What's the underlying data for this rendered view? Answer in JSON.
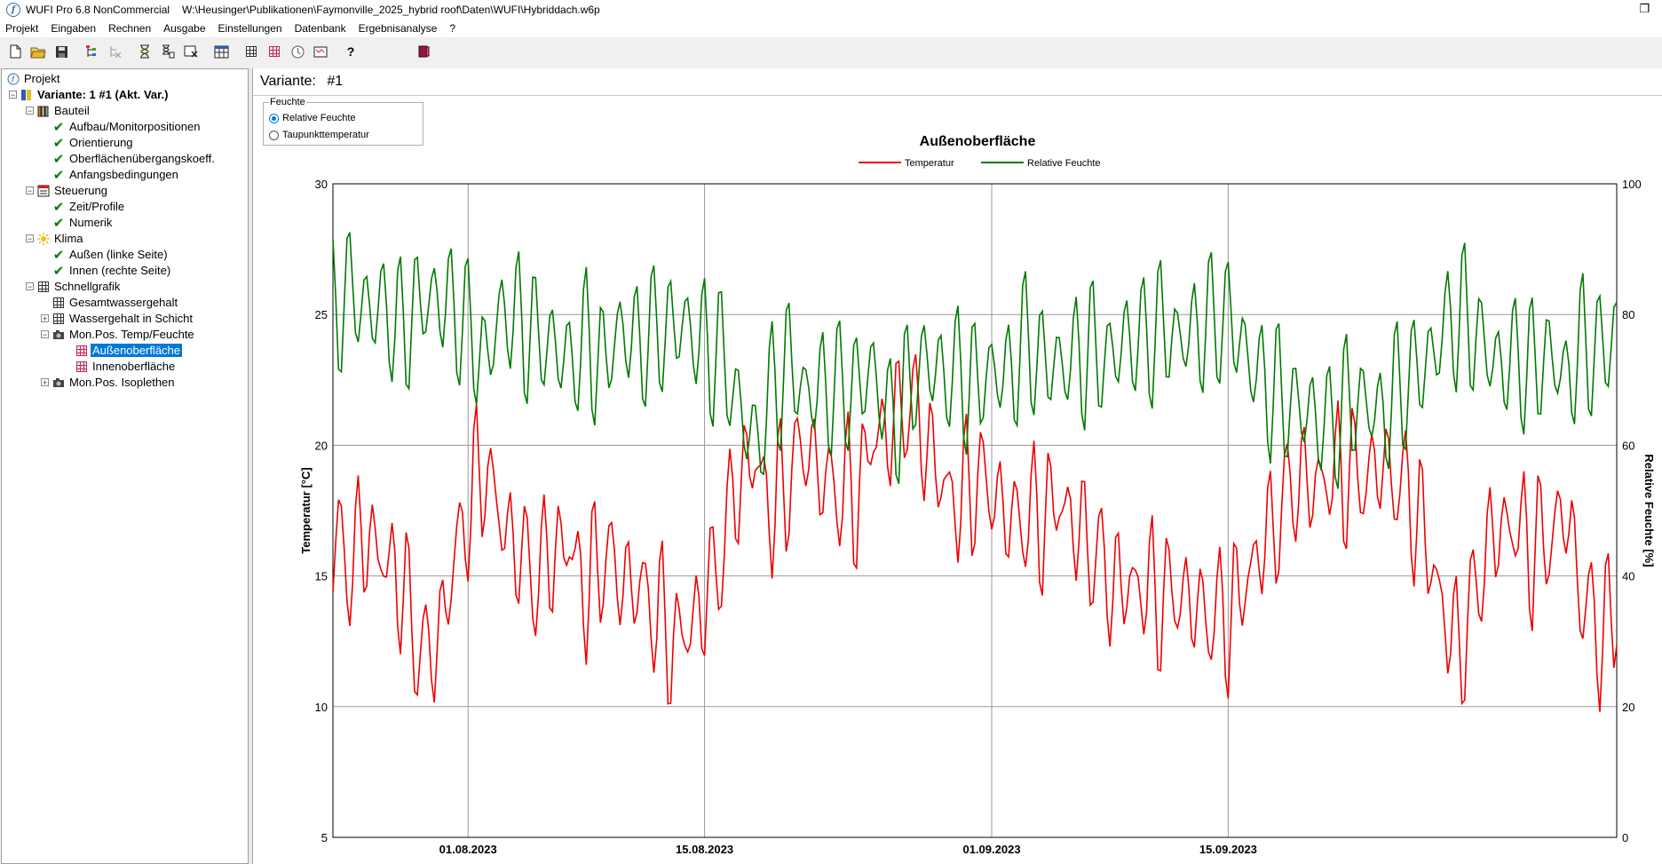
{
  "window": {
    "app_title": "WUFI Pro 6.8 NonCommercial",
    "file_path": "W:\\Heusinger\\Publikationen\\Faymonville_2025_hybrid roof\\Daten\\WUFI\\Hybriddach.w6p"
  },
  "menu": [
    "Projekt",
    "Eingaben",
    "Rechnen",
    "Ausgabe",
    "Einstellungen",
    "Datenbank",
    "Ergebnisanalyse",
    "?"
  ],
  "toolbar": {
    "icons": [
      "new-file-icon",
      "open-folder-icon",
      "save-icon",
      "tree-icon",
      "tree-disabled-icon",
      "hourglass-icon",
      "hourglass-multi-icon",
      "hourglass-cancel-icon",
      "table-icon",
      "grid-icon",
      "chart-grid-icon",
      "clock-icon",
      "film-icon",
      "help-icon",
      "book-icon"
    ],
    "help_glyph": "?"
  },
  "tree": {
    "root": "Projekt",
    "variant": "Variante: 1 #1 (Akt. Var.)",
    "bauteil": "Bauteil",
    "bauteil_items": [
      "Aufbau/Monitorpositionen",
      "Orientierung",
      "Oberflächenübergangskoeff.",
      "Anfangsbedingungen"
    ],
    "steuerung": "Steuerung",
    "steuerung_items": [
      "Zeit/Profile",
      "Numerik"
    ],
    "klima": "Klima",
    "klima_items": [
      "Außen (linke Seite)",
      "Innen (rechte Seite)"
    ],
    "schnellgrafik": "Schnellgrafik",
    "gesamtwassergehalt": "Gesamtwassergehalt",
    "wassergehalt_schicht": "Wassergehalt in Schicht",
    "monpos_temp": "Mon.Pos. Temp/Feuchte",
    "aussenoberflaeche": "Außenoberfläche",
    "innenoberflaeche": "Innenoberfläche",
    "monpos_isoplethen": "Mon.Pos. Isoplethen"
  },
  "main": {
    "variant_label": "Variante:",
    "variant_value": "#1",
    "feuchte_group": {
      "title": "Feuchte",
      "options": [
        "Relative Feuchte",
        "Taupunkttemperatur"
      ],
      "selected": "Relative Feuchte"
    }
  },
  "colors": {
    "temperature": "#ee0000",
    "humidity": "#007a00",
    "selection": "#0078d7"
  },
  "chart_data": {
    "type": "line",
    "title": "Außenoberfläche",
    "xlabel": "",
    "ylabel": "Temperatur [°C]",
    "y2label": "Relative Feuchte [%]",
    "x_start": "24.07.2023",
    "x_end": "08.10.2023",
    "x_ticks": [
      "01.08.2023",
      "15.08.2023",
      "01.09.2023",
      "15.09.2023"
    ],
    "y_ticks": [
      "5",
      "10",
      "15",
      "20",
      "25",
      "30"
    ],
    "y2_ticks": [
      "0",
      "20",
      "40",
      "60",
      "80",
      "100"
    ],
    "ylim": [
      5,
      30
    ],
    "y2lim": [
      0,
      100
    ],
    "grid": true,
    "legend_position": "top-center",
    "series": [
      {
        "name": "Temperatur",
        "axis": "left",
        "daily_mean": [
          16.2,
          15.5,
          16.6,
          15.6,
          14.8,
          12.3,
          12.0,
          15.0,
          17.6,
          19.3,
          17.0,
          15.9,
          14.9,
          15.9,
          16.2,
          14.3,
          15.9,
          14.9,
          14.6,
          13.8,
          12.5,
          12.9,
          14.0,
          15.9,
          18.7,
          19.5,
          17.4,
          18.8,
          20.1,
          18.6,
          18.3,
          18.0,
          20.4,
          20.5,
          21.8,
          20.4,
          18.6,
          17.7,
          18.7,
          18.3,
          17.1,
          17.2,
          17.2,
          17.9,
          16.8,
          16.0,
          14.8,
          14.6,
          14.6,
          14.1,
          14.4,
          13.8,
          13.4,
          13.4,
          14.7,
          16.1,
          17.3,
          18.7,
          18.4,
          18.8,
          19.0,
          18.7,
          19.2,
          18.6,
          17.7,
          15.7,
          12.8,
          12.5,
          15.5,
          16.8,
          16.9,
          16.0,
          16.4,
          17.5,
          14.0,
          12.8,
          13.6,
          13.1,
          14.5,
          16.4,
          16.9,
          17.8
        ]
      },
      {
        "name": "Relative Feuchte",
        "axis": "right",
        "daily_mean": [
          80.4,
          83.9,
          80.6,
          81.1,
          77.3,
          81.4,
          82.5,
          81.0,
          78.1,
          72.6,
          80.6,
          78.7,
          76.5,
          75.4,
          72.4,
          76.0,
          72.3,
          77.7,
          75.5,
          77.0,
          78.1,
          78.1,
          75.0,
          73.8,
          66.1,
          59.9,
          68.1,
          72.9,
          67.5,
          68.8,
          68.5,
          69.0,
          71.4,
          63.3,
          68.2,
          72.9,
          70.8,
          70.9,
          69.1,
          71.4,
          70.4,
          76.0,
          72.7,
          72.2,
          73.4,
          74.4,
          73.1,
          76.3,
          75.7,
          78.2,
          76.1,
          77.3,
          78.8,
          79.9,
          74.1,
          69.8,
          67.4,
          66.0,
          64.7,
          62.5,
          66.5,
          66.9,
          64.2,
          68.1,
          70.8,
          73.3,
          78.8,
          79.4,
          75.7,
          71.9,
          73.3,
          71.8,
          74.1,
          69.8,
          75.4,
          74.2,
          77.0,
          76.2,
          75.6,
          72.2,
          72.7,
          72.4
        ]
      }
    ]
  }
}
